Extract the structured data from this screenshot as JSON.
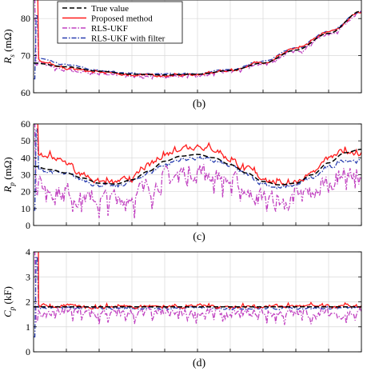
{
  "legend": {
    "placement": "top-left",
    "entries": [
      {
        "label": "True value",
        "color": "#000000",
        "dash": "dashed"
      },
      {
        "label": "Proposed method",
        "color": "#ff1a1a",
        "dash": "solid"
      },
      {
        "label": "RLS-UKF",
        "color": "#c040c0",
        "dash": "dashdot"
      },
      {
        "label": "RLS-UKF with filter",
        "color": "#2a3fb0",
        "dash": "dashdot"
      }
    ]
  },
  "chart_data": [
    {
      "type": "line",
      "panel_label": "(b)",
      "ylabel": "R",
      "ylabel_sub": "s",
      "ylabel_unit": " (mΩ)",
      "ylim": [
        60,
        85
      ],
      "yticks": [
        60,
        70,
        80
      ],
      "xlim": [
        0,
        100
      ],
      "grid": true,
      "series": [
        {
          "name": "True value",
          "x": [
            0,
            10,
            20,
            30,
            40,
            50,
            60,
            70,
            80,
            90,
            100
          ],
          "values": [
            68,
            67,
            65.8,
            65,
            64.8,
            65,
            66,
            68,
            71.5,
            76,
            82
          ]
        },
        {
          "name": "Proposed method",
          "x": [
            0,
            10,
            20,
            30,
            40,
            50,
            60,
            70,
            80,
            90,
            100
          ],
          "values": [
            69,
            66.5,
            65.5,
            64.8,
            64.6,
            64.9,
            66,
            68.2,
            71.8,
            76.3,
            81.8
          ]
        },
        {
          "name": "RLS-UKF",
          "x": [
            0,
            10,
            20,
            30,
            40,
            50,
            60,
            70,
            80,
            90,
            100
          ],
          "values": [
            68.5,
            66,
            65.3,
            64.5,
            64.5,
            64.7,
            65.8,
            67.8,
            71.2,
            75.8,
            81.6
          ]
        },
        {
          "name": "RLS-UKF with filter",
          "x": [
            0,
            10,
            20,
            30,
            40,
            50,
            60,
            70,
            80,
            90,
            100
          ],
          "values": [
            69.5,
            67.5,
            66,
            65.2,
            65,
            65.2,
            66.3,
            68.5,
            72,
            76.5,
            81.9
          ]
        }
      ]
    },
    {
      "type": "line",
      "panel_label": "(c)",
      "ylabel": "R",
      "ylabel_sub": "p",
      "ylabel_unit": " (mΩ)",
      "ylim": [
        0,
        60
      ],
      "yticks": [
        0,
        10,
        20,
        30,
        40,
        50,
        60
      ],
      "xlim": [
        0,
        100
      ],
      "grid": true,
      "series": [
        {
          "name": "True value",
          "x": [
            0,
            5,
            10,
            15,
            20,
            25,
            30,
            35,
            40,
            45,
            50,
            55,
            60,
            65,
            70,
            75,
            80,
            85,
            90,
            95,
            100
          ],
          "values": [
            35,
            33,
            31,
            28,
            25,
            24.5,
            27,
            32,
            38,
            41,
            42,
            40,
            36,
            31,
            26,
            24,
            25,
            30,
            37,
            43,
            45
          ]
        },
        {
          "name": "Proposed method",
          "x": [
            0,
            5,
            10,
            15,
            20,
            25,
            30,
            35,
            40,
            45,
            50,
            55,
            60,
            65,
            70,
            75,
            80,
            85,
            90,
            95,
            100
          ],
          "values": [
            40,
            41,
            37,
            30,
            26,
            25,
            28,
            35,
            42,
            46,
            47,
            45,
            39,
            33,
            28,
            25,
            26,
            31,
            39,
            44,
            43
          ]
        },
        {
          "name": "RLS-UKF",
          "x": [
            0,
            5,
            10,
            15,
            20,
            25,
            30,
            35,
            40,
            45,
            50,
            55,
            60,
            65,
            70,
            75,
            80,
            85,
            90,
            95,
            100
          ],
          "values": [
            25,
            22,
            20,
            17,
            15,
            16,
            18,
            23,
            28,
            31,
            33,
            30,
            26,
            21,
            17,
            14,
            16,
            20,
            26,
            32,
            28
          ]
        },
        {
          "name": "RLS-UKF with filter",
          "x": [
            0,
            5,
            10,
            15,
            20,
            25,
            30,
            35,
            40,
            45,
            50,
            55,
            60,
            65,
            70,
            75,
            80,
            85,
            90,
            95,
            100
          ],
          "values": [
            33,
            32,
            30,
            27,
            24,
            23,
            26,
            31,
            36,
            39,
            40,
            38,
            35,
            30,
            25,
            22,
            24,
            28,
            34,
            39,
            38
          ]
        }
      ]
    },
    {
      "type": "line",
      "panel_label": "(d)",
      "ylabel": "C",
      "ylabel_sub": "p",
      "ylabel_unit": " (kF)",
      "ylim": [
        0,
        4
      ],
      "yticks": [
        0,
        1,
        2,
        3,
        4
      ],
      "xlim": [
        0,
        100
      ],
      "grid": true,
      "series": [
        {
          "name": "True value",
          "x": [
            0,
            10,
            20,
            30,
            40,
            50,
            60,
            70,
            80,
            90,
            100
          ],
          "values": [
            1.8,
            1.8,
            1.8,
            1.8,
            1.8,
            1.8,
            1.8,
            1.8,
            1.8,
            1.8,
            1.8
          ]
        },
        {
          "name": "Proposed method",
          "x": [
            0,
            10,
            20,
            30,
            40,
            50,
            60,
            70,
            80,
            90,
            100
          ],
          "values": [
            1.85,
            1.82,
            1.8,
            1.83,
            1.81,
            1.84,
            1.8,
            1.82,
            1.83,
            1.8,
            1.82
          ]
        },
        {
          "name": "RLS-UKF",
          "x": [
            0,
            10,
            20,
            30,
            40,
            50,
            60,
            70,
            80,
            90,
            100
          ],
          "values": [
            1.55,
            1.6,
            1.5,
            1.55,
            1.52,
            1.58,
            1.5,
            1.55,
            1.53,
            1.56,
            1.55
          ]
        },
        {
          "name": "RLS-UKF with filter",
          "x": [
            0,
            10,
            20,
            30,
            40,
            50,
            60,
            70,
            80,
            90,
            100
          ],
          "values": [
            1.75,
            1.76,
            1.74,
            1.75,
            1.74,
            1.76,
            1.75,
            1.74,
            1.76,
            1.75,
            1.75
          ]
        }
      ]
    }
  ]
}
